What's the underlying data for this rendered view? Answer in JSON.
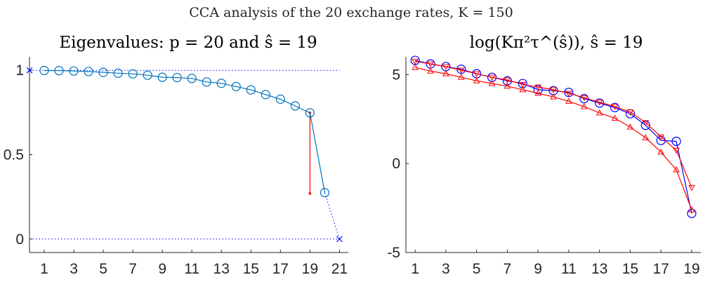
{
  "figure": {
    "suptitle": "CCA analysis of the 20 exchange rates, K = 150"
  },
  "chart_data": [
    {
      "type": "line",
      "title": "Eigenvalues: p = 20 and ŝ = 19",
      "xlabel": "",
      "ylabel": "",
      "xlim": [
        0,
        21.6
      ],
      "ylim": [
        -0.08,
        1.08
      ],
      "xticks": [
        1,
        3,
        5,
        7,
        9,
        11,
        13,
        15,
        17,
        19,
        21
      ],
      "yticks": [
        0,
        0.5,
        1
      ],
      "grid": false,
      "series": [
        {
          "x": [
            1,
            2,
            3,
            4,
            5,
            6,
            7,
            8,
            9,
            10,
            11,
            12,
            13,
            14,
            15,
            16,
            17,
            18,
            19,
            20
          ],
          "y": [
            0.999,
            0.998,
            0.996,
            0.993,
            0.988,
            0.983,
            0.979,
            0.971,
            0.959,
            0.957,
            0.952,
            0.931,
            0.923,
            0.904,
            0.884,
            0.856,
            0.829,
            0.789,
            0.748,
            0.275
          ],
          "color": "#0072BD",
          "marker": "circle"
        }
      ],
      "reference_lines": [
        {
          "y": 1,
          "color": "#0000FF",
          "style": "dotted"
        },
        {
          "y": 0,
          "color": "#0000FF",
          "style": "dotted"
        }
      ],
      "end_markers": [
        {
          "x": 0,
          "y": 1,
          "marker": "x",
          "color": "#0000FF"
        },
        {
          "x": 21,
          "y": 0,
          "marker": "x",
          "color": "#0000FF"
        }
      ],
      "tail_segment": {
        "x": [
          20,
          21
        ],
        "y": [
          0.275,
          0
        ],
        "color": "#0000FF",
        "style": "dotted"
      },
      "gap_marker": {
        "x": 19,
        "y_from": 0.748,
        "y_to": 0.27,
        "color": "#FF0000"
      }
    },
    {
      "type": "line",
      "title": "log(Kπ²τ^(ŝ)), ŝ = 19",
      "xlabel": "",
      "ylabel": "",
      "xlim": [
        0.4,
        19.6
      ],
      "ylim": [
        -5,
        6
      ],
      "xticks": [
        1,
        3,
        5,
        7,
        9,
        11,
        13,
        15,
        17,
        19
      ],
      "yticks": [
        -5,
        0,
        5
      ],
      "grid": false,
      "series": [
        {
          "x": [
            1,
            2,
            3,
            4,
            5,
            6,
            7,
            8,
            9,
            10,
            11,
            12,
            13,
            14,
            15,
            16,
            17,
            18,
            19
          ],
          "y": [
            5.8,
            5.6,
            5.45,
            5.3,
            5.05,
            4.85,
            4.65,
            4.5,
            4.15,
            4.1,
            4.0,
            3.65,
            3.4,
            3.15,
            2.8,
            2.15,
            1.3,
            1.25,
            -2.8
          ],
          "color": "#0000FF",
          "marker": "circle"
        },
        {
          "x": [
            1,
            2,
            3,
            4,
            5,
            6,
            7,
            8,
            9,
            10,
            11,
            12,
            13,
            14,
            15,
            16,
            17,
            18,
            19
          ],
          "y": [
            5.75,
            5.6,
            5.45,
            5.25,
            5.05,
            4.85,
            4.7,
            4.45,
            4.3,
            4.15,
            3.95,
            3.7,
            3.45,
            3.2,
            2.9,
            2.3,
            1.5,
            0.75,
            -1.35
          ],
          "color": "#FF0000",
          "marker": "triangle-down"
        },
        {
          "x": [
            1,
            2,
            3,
            4,
            5,
            6,
            7,
            8,
            9,
            10,
            11,
            12,
            13,
            14,
            15,
            16,
            17,
            18,
            19
          ],
          "y": [
            5.4,
            5.2,
            5.05,
            4.85,
            4.65,
            4.5,
            4.35,
            4.15,
            3.95,
            3.75,
            3.5,
            3.2,
            2.85,
            2.55,
            2.05,
            1.45,
            0.65,
            -0.35,
            -2.6
          ],
          "color": "#FF0000",
          "marker": "triangle-up"
        }
      ]
    }
  ]
}
